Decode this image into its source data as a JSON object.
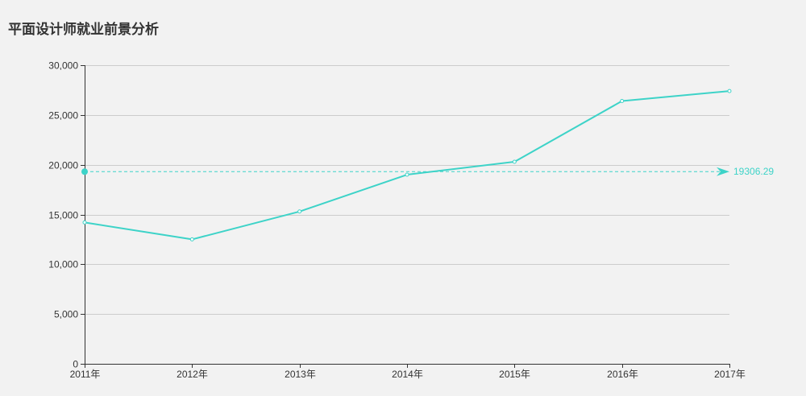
{
  "title": "平面设计师就业前景分析",
  "colors": {
    "background": "#f2f2f2",
    "series": "#3dd3c8",
    "grid": "#cccccc",
    "axis": "#333333",
    "text": "#333333"
  },
  "chart_data": {
    "type": "line",
    "title": "平面设计师就业前景分析",
    "xlabel": "",
    "ylabel": "",
    "categories": [
      "2011年",
      "2012年",
      "2013年",
      "2014年",
      "2015年",
      "2016年",
      "2017年"
    ],
    "series": [
      {
        "values": [
          14200,
          12500,
          15300,
          19000,
          20300,
          26400,
          27400
        ]
      }
    ],
    "ylim": [
      0,
      30000
    ],
    "yticks": [
      0,
      5000,
      10000,
      15000,
      20000,
      25000,
      30000
    ],
    "ytick_labels": [
      "0",
      "5,000",
      "10,000",
      "15,000",
      "20,000",
      "25,000",
      "30,000"
    ],
    "grid": true,
    "average_line": {
      "value": 19306.29,
      "label": "19306.29"
    }
  }
}
